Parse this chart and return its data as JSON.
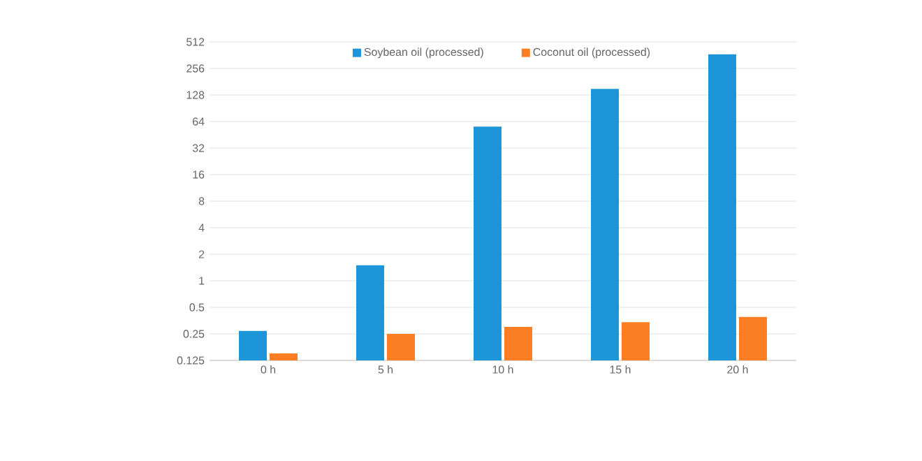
{
  "chart_data": {
    "type": "bar",
    "log": "y",
    "grid": "y",
    "legend": "top",
    "categories": [
      "0 h",
      "5 h",
      "10 h",
      "15 h",
      "20 h"
    ],
    "series": [
      {
        "name": "Soybean oil (processed)",
        "color": "#1c96d8",
        "values": [
          0.27,
          1.5,
          56,
          150,
          370
        ]
      },
      {
        "name": "Coconut oil (processed)",
        "color": "#fb7d24",
        "values": [
          0.15,
          0.25,
          0.3,
          0.34,
          0.39
        ]
      }
    ],
    "ylim": [
      0.125,
      512
    ],
    "yticks": [
      0.125,
      0.25,
      0.5,
      1,
      2,
      4,
      8,
      16,
      32,
      64,
      128,
      256,
      512
    ]
  }
}
